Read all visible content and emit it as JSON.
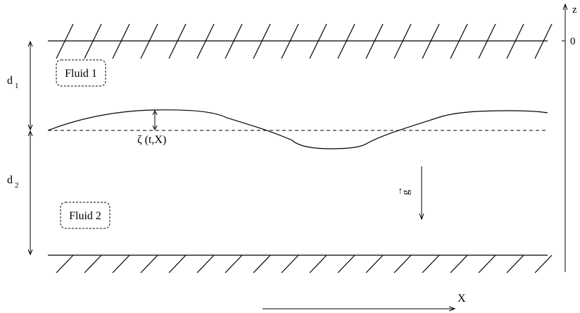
{
  "labels": {
    "fluid_top": "Fluid 1",
    "fluid_bottom": "Fluid 2",
    "depth_top": "d",
    "depth_top_sub": "1",
    "depth_bottom": "d",
    "depth_bottom_sub": "2",
    "interface": "ζ (t,X)",
    "gravity": "g",
    "gravity_arrow": "→",
    "z_axis": "z",
    "zero": "0",
    "x_axis": "X"
  },
  "colors": {
    "stroke": "#000000",
    "background": "#ffffff"
  }
}
